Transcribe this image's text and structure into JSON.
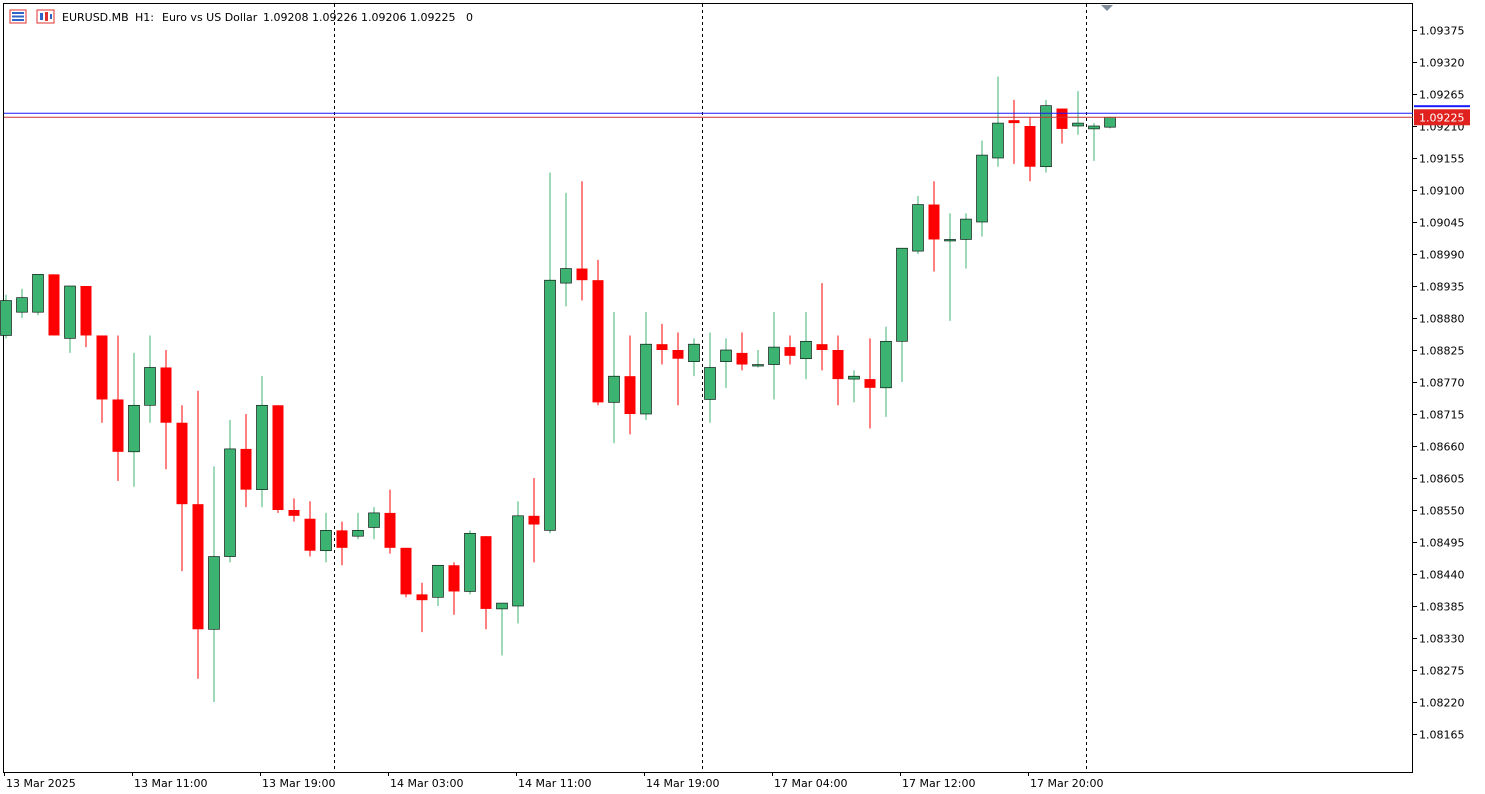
{
  "header": {
    "symbol": "EURUSD.MB",
    "timeframe": "H1:",
    "description": "Euro vs US Dollar",
    "ohlc": "1.09208 1.09226 1.09206 1.09225",
    "volume": "0"
  },
  "icons": {
    "market_watch": "market-watch-icon",
    "chart_type": "chart-type-icon",
    "shift_marker": "chart-shift-marker-icon"
  },
  "colors": {
    "bull": "#3cb371",
    "bear": "#ff0000",
    "ask_line": "#1a1aff",
    "bid_line": "#cc3333",
    "price_tag": "#e0211e"
  },
  "current_price": {
    "bid": 1.09225,
    "ask": 1.09232,
    "label": "1.09225"
  },
  "chart_data": {
    "type": "candlestick",
    "title": "",
    "xlabel": "",
    "ylabel": "",
    "ylim": [
      1.08115,
      1.09435
    ],
    "y_ticks": [
      "1.09375",
      "1.09320",
      "1.09265",
      "1.09210",
      "1.09155",
      "1.09100",
      "1.09045",
      "1.08990",
      "1.08935",
      "1.08880",
      "1.08825",
      "1.08770",
      "1.08715",
      "1.08660",
      "1.08605",
      "1.08550",
      "1.08495",
      "1.08440",
      "1.08385",
      "1.08330",
      "1.08275",
      "1.08220",
      "1.08165"
    ],
    "x_ticks": [
      {
        "label": "13 Mar 2025",
        "index": 0
      },
      {
        "label": "13 Mar 11:00",
        "index": 8
      },
      {
        "label": "13 Mar 19:00",
        "index": 16
      },
      {
        "label": "14 Mar 03:00",
        "index": 24
      },
      {
        "label": "14 Mar 11:00",
        "index": 32
      },
      {
        "label": "14 Mar 19:00",
        "index": 40
      },
      {
        "label": "17 Mar 04:00",
        "index": 48
      },
      {
        "label": "17 Mar 12:00",
        "index": 56
      },
      {
        "label": "17 Mar 20:00",
        "index": 64
      }
    ],
    "day_separators": [
      20.5,
      43.5,
      67.5
    ],
    "grid": false,
    "candles": [
      {
        "o": 1.0885,
        "h": 1.0892,
        "l": 1.08845,
        "c": 1.0891
      },
      {
        "o": 1.0889,
        "h": 1.0893,
        "l": 1.0888,
        "c": 1.08915
      },
      {
        "o": 1.0889,
        "h": 1.08955,
        "l": 1.08885,
        "c": 1.08955
      },
      {
        "o": 1.08955,
        "h": 1.08955,
        "l": 1.0885,
        "c": 1.0885
      },
      {
        "o": 1.08845,
        "h": 1.08935,
        "l": 1.0882,
        "c": 1.08935
      },
      {
        "o": 1.08935,
        "h": 1.08935,
        "l": 1.0883,
        "c": 1.0885
      },
      {
        "o": 1.0885,
        "h": 1.0885,
        "l": 1.087,
        "c": 1.0874
      },
      {
        "o": 1.0874,
        "h": 1.0885,
        "l": 1.086,
        "c": 1.0865
      },
      {
        "o": 1.0865,
        "h": 1.0882,
        "l": 1.0859,
        "c": 1.0873
      },
      {
        "o": 1.0873,
        "h": 1.0885,
        "l": 1.087,
        "c": 1.08795
      },
      {
        "o": 1.08795,
        "h": 1.08825,
        "l": 1.0862,
        "c": 1.087
      },
      {
        "o": 1.087,
        "h": 1.0873,
        "l": 1.08445,
        "c": 1.0856
      },
      {
        "o": 1.0856,
        "h": 1.08755,
        "l": 1.0826,
        "c": 1.08345
      },
      {
        "o": 1.08345,
        "h": 1.08625,
        "l": 1.0822,
        "c": 1.0847
      },
      {
        "o": 1.0847,
        "h": 1.08705,
        "l": 1.0846,
        "c": 1.08655
      },
      {
        "o": 1.08655,
        "h": 1.08715,
        "l": 1.08555,
        "c": 1.08585
      },
      {
        "o": 1.08585,
        "h": 1.0878,
        "l": 1.08555,
        "c": 1.0873
      },
      {
        "o": 1.0873,
        "h": 1.0873,
        "l": 1.08545,
        "c": 1.0855
      },
      {
        "o": 1.0855,
        "h": 1.0857,
        "l": 1.0853,
        "c": 1.0854
      },
      {
        "o": 1.08535,
        "h": 1.08565,
        "l": 1.0847,
        "c": 1.0848
      },
      {
        "o": 1.0848,
        "h": 1.08545,
        "l": 1.0846,
        "c": 1.08515
      },
      {
        "o": 1.08515,
        "h": 1.0853,
        "l": 1.08455,
        "c": 1.08485
      },
      {
        "o": 1.08505,
        "h": 1.08545,
        "l": 1.085,
        "c": 1.08515
      },
      {
        "o": 1.0852,
        "h": 1.08555,
        "l": 1.085,
        "c": 1.08545
      },
      {
        "o": 1.08545,
        "h": 1.08585,
        "l": 1.08475,
        "c": 1.08485
      },
      {
        "o": 1.08485,
        "h": 1.08485,
        "l": 1.084,
        "c": 1.08405
      },
      {
        "o": 1.08405,
        "h": 1.08425,
        "l": 1.0834,
        "c": 1.08395
      },
      {
        "o": 1.084,
        "h": 1.08455,
        "l": 1.08385,
        "c": 1.08455
      },
      {
        "o": 1.08455,
        "h": 1.0846,
        "l": 1.0837,
        "c": 1.0841
      },
      {
        "o": 1.0841,
        "h": 1.08515,
        "l": 1.08405,
        "c": 1.0851
      },
      {
        "o": 1.08505,
        "h": 1.08505,
        "l": 1.08345,
        "c": 1.0838
      },
      {
        "o": 1.0838,
        "h": 1.0839,
        "l": 1.083,
        "c": 1.0839
      },
      {
        "o": 1.08385,
        "h": 1.08565,
        "l": 1.08355,
        "c": 1.0854
      },
      {
        "o": 1.0854,
        "h": 1.08605,
        "l": 1.0846,
        "c": 1.08525
      },
      {
        "o": 1.08515,
        "h": 1.0913,
        "l": 1.0851,
        "c": 1.08945
      },
      {
        "o": 1.0894,
        "h": 1.09095,
        "l": 1.089,
        "c": 1.08965
      },
      {
        "o": 1.08965,
        "h": 1.09115,
        "l": 1.0891,
        "c": 1.08945
      },
      {
        "o": 1.08945,
        "h": 1.0898,
        "l": 1.0873,
        "c": 1.08735
      },
      {
        "o": 1.08735,
        "h": 1.0889,
        "l": 1.08665,
        "c": 1.0878
      },
      {
        "o": 1.0878,
        "h": 1.0885,
        "l": 1.0868,
        "c": 1.08715
      },
      {
        "o": 1.08715,
        "h": 1.0889,
        "l": 1.08705,
        "c": 1.08835
      },
      {
        "o": 1.08835,
        "h": 1.0887,
        "l": 1.088,
        "c": 1.08825
      },
      {
        "o": 1.08825,
        "h": 1.08855,
        "l": 1.0873,
        "c": 1.0881
      },
      {
        "o": 1.08805,
        "h": 1.08845,
        "l": 1.0878,
        "c": 1.08835
      },
      {
        "o": 1.0874,
        "h": 1.08855,
        "l": 1.087,
        "c": 1.08795
      },
      {
        "o": 1.08805,
        "h": 1.08845,
        "l": 1.0876,
        "c": 1.08825
      },
      {
        "o": 1.0882,
        "h": 1.08855,
        "l": 1.0879,
        "c": 1.088
      },
      {
        "o": 1.088,
        "h": 1.08825,
        "l": 1.08795,
        "c": 1.088
      },
      {
        "o": 1.088,
        "h": 1.0889,
        "l": 1.0874,
        "c": 1.0883
      },
      {
        "o": 1.0883,
        "h": 1.0885,
        "l": 1.088,
        "c": 1.08815
      },
      {
        "o": 1.0881,
        "h": 1.0889,
        "l": 1.08775,
        "c": 1.0884
      },
      {
        "o": 1.08835,
        "h": 1.0894,
        "l": 1.0879,
        "c": 1.08825
      },
      {
        "o": 1.08825,
        "h": 1.0885,
        "l": 1.0873,
        "c": 1.08775
      },
      {
        "o": 1.08775,
        "h": 1.0879,
        "l": 1.08735,
        "c": 1.0878
      },
      {
        "o": 1.08775,
        "h": 1.08845,
        "l": 1.0869,
        "c": 1.0876
      },
      {
        "o": 1.0876,
        "h": 1.08865,
        "l": 1.0871,
        "c": 1.0884
      },
      {
        "o": 1.0884,
        "h": 1.09,
        "l": 1.0877,
        "c": 1.09
      },
      {
        "o": 1.08995,
        "h": 1.0909,
        "l": 1.0899,
        "c": 1.09075
      },
      {
        "o": 1.09075,
        "h": 1.09115,
        "l": 1.0896,
        "c": 1.09015
      },
      {
        "o": 1.09015,
        "h": 1.0906,
        "l": 1.08875,
        "c": 1.09015
      },
      {
        "o": 1.09015,
        "h": 1.0906,
        "l": 1.08965,
        "c": 1.0905
      },
      {
        "o": 1.09045,
        "h": 1.09185,
        "l": 1.0902,
        "c": 1.0916
      },
      {
        "o": 1.09155,
        "h": 1.09295,
        "l": 1.0914,
        "c": 1.09215
      },
      {
        "o": 1.0922,
        "h": 1.09255,
        "l": 1.09145,
        "c": 1.09215
      },
      {
        "o": 1.0921,
        "h": 1.09225,
        "l": 1.09115,
        "c": 1.0914
      },
      {
        "o": 1.0914,
        "h": 1.09255,
        "l": 1.0913,
        "c": 1.09245
      },
      {
        "o": 1.0924,
        "h": 1.0924,
        "l": 1.0918,
        "c": 1.09205
      },
      {
        "o": 1.0921,
        "h": 1.0927,
        "l": 1.09195,
        "c": 1.09215
      },
      {
        "o": 1.09205,
        "h": 1.09215,
        "l": 1.0915,
        "c": 1.0921
      },
      {
        "o": 1.09208,
        "h": 1.09226,
        "l": 1.09206,
        "c": 1.09225
      }
    ]
  }
}
